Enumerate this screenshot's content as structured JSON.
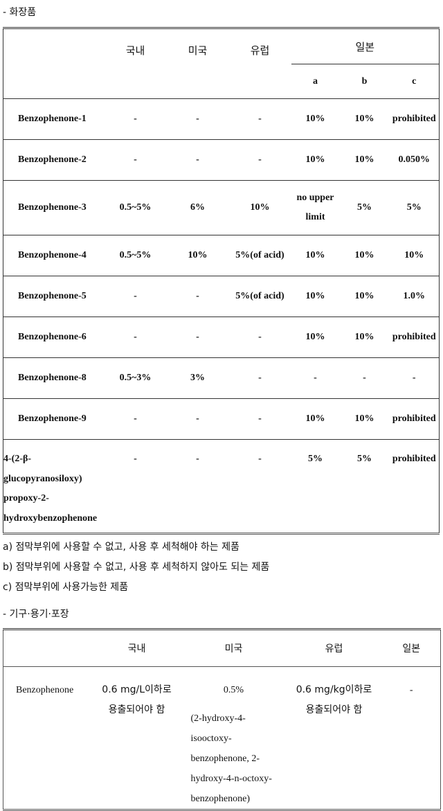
{
  "cosmetics": {
    "section_title": "- 화장품",
    "headers": {
      "domestic": "국내",
      "usa": "미국",
      "europe": "유럽",
      "japan": "일본",
      "sub": [
        "a",
        "b",
        "c"
      ]
    },
    "rows": [
      {
        "name": "Benzophenone-1",
        "domestic": "-",
        "usa": "-",
        "europe": "-",
        "a": "10%",
        "b": "10%",
        "c": "prohibited"
      },
      {
        "name": "Benzophenone-2",
        "domestic": "-",
        "usa": "-",
        "europe": "-",
        "a": "10%",
        "b": "10%",
        "c": "0.050%"
      },
      {
        "name": "Benzophenone-3",
        "domestic": "0.5~5%",
        "usa": "6%",
        "europe": "10%",
        "a": "no upper limit",
        "b": "5%",
        "c": "5%"
      },
      {
        "name": "Benzophenone-4",
        "domestic": "0.5~5%",
        "usa": "10%",
        "europe": "5%(of acid)",
        "a": "10%",
        "b": "10%",
        "c": "10%"
      },
      {
        "name": "Benzophenone-5",
        "domestic": "-",
        "usa": "-",
        "europe": "5%(of acid)",
        "a": "10%",
        "b": "10%",
        "c": "1.0%"
      },
      {
        "name": "Benzophenone-6",
        "domestic": "-",
        "usa": "-",
        "europe": "-",
        "a": "10%",
        "b": "10%",
        "c": "prohibited"
      },
      {
        "name": "Benzophenone-8",
        "domestic": "0.5~3%",
        "usa": "3%",
        "europe": "-",
        "a": "-",
        "b": "-",
        "c": "-"
      },
      {
        "name": "Benzophenone-9",
        "domestic": "-",
        "usa": "-",
        "europe": "-",
        "a": "10%",
        "b": "10%",
        "c": "prohibited"
      },
      {
        "name": "4-(2-β-glucopyranosiloxy) propoxy-2-hydroxybenzophenone",
        "domestic": "-",
        "usa": "-",
        "europe": "-",
        "a": "5%",
        "b": "5%",
        "c": "prohibited"
      }
    ],
    "notes": [
      "a) 점막부위에 사용할 수 없고, 사용 후 세척해야 하는 제품",
      "b) 점막부위에 사용할 수 없고, 사용 후 세척하지 않아도 되는 제품",
      "c) 점막부위에 사용가능한 제품"
    ]
  },
  "packaging": {
    "section_title": "- 기구·용기·포장",
    "headers": {
      "domestic": "국내",
      "usa": "미국",
      "europe": "유럽",
      "japan": "일본"
    },
    "row": {
      "name": "Benzophenone",
      "domestic": "0.6 mg/L이하로 용출되어야 함",
      "usa_1": "0.5%",
      "usa_2": "(2-hydroxy-4-isooctoxy-benzophenone, 2-hydroxy-4-n-octoxy-benzophenone)",
      "europe": "0.6 mg/kg이하로 용출되어야 함",
      "japan": "-"
    }
  }
}
